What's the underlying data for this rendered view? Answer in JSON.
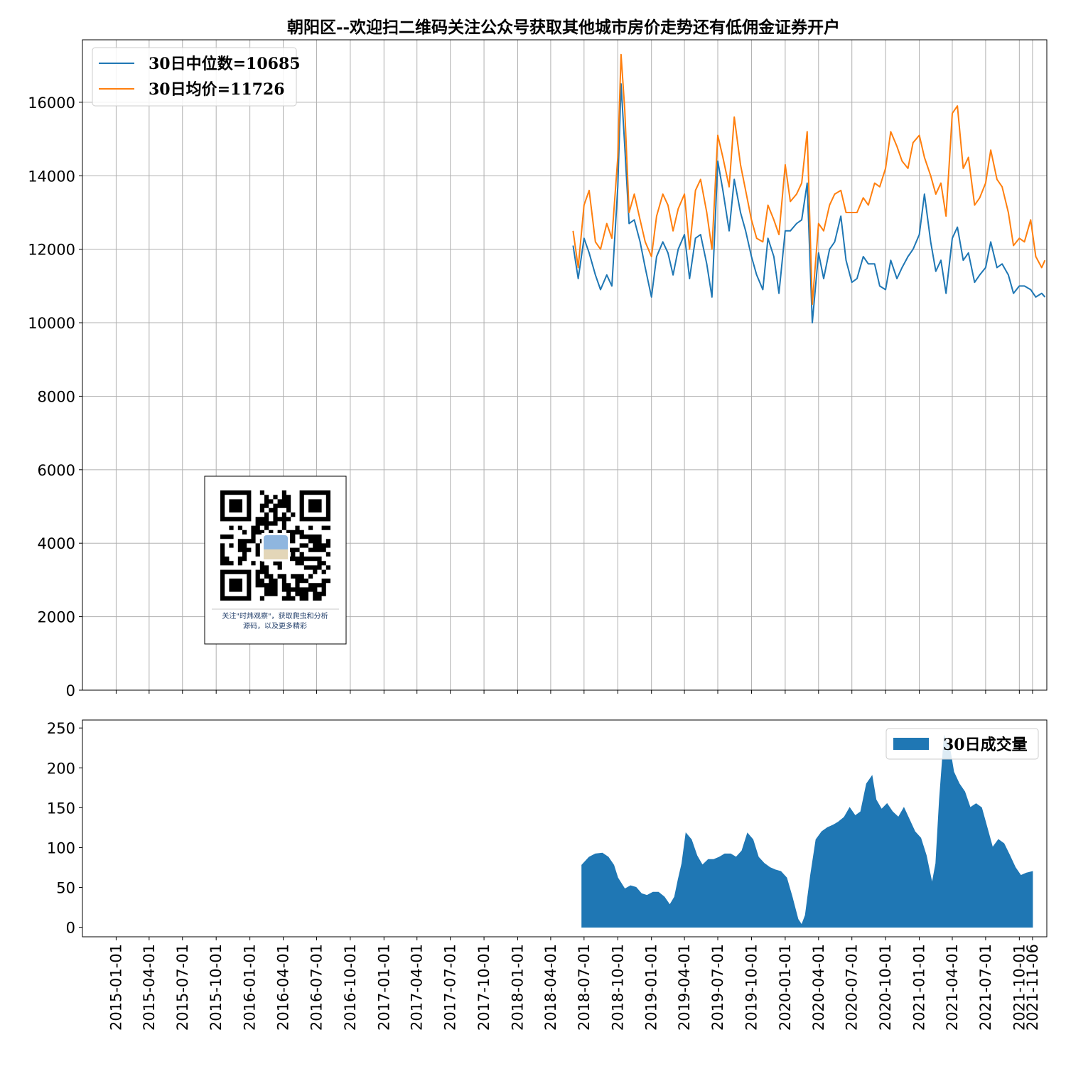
{
  "chart_data": [
    {
      "type": "line",
      "title": "朝阳区--欢迎扫二维码关注公众号获取其他城市房价走势还有低佣金证券开户",
      "xlabel": "",
      "ylabel": "",
      "x_range": [
        "2014-10-01",
        "2021-12-15"
      ],
      "ylim": [
        0,
        17700
      ],
      "y_ticks": [
        0,
        2000,
        4000,
        6000,
        8000,
        10000,
        12000,
        14000,
        16000
      ],
      "grid": true,
      "legend": "top-left",
      "series": [
        {
          "name": "30日中位数=10685",
          "color": "#1f77b4",
          "x": [
            "2018-06-01",
            "2018-06-15",
            "2018-07-01",
            "2018-07-15",
            "2018-08-01",
            "2018-08-15",
            "2018-09-01",
            "2018-09-15",
            "2018-10-01",
            "2018-10-10",
            "2018-10-20",
            "2018-11-01",
            "2018-11-15",
            "2018-12-01",
            "2018-12-15",
            "2019-01-01",
            "2019-01-15",
            "2019-02-01",
            "2019-02-15",
            "2019-03-01",
            "2019-03-15",
            "2019-04-01",
            "2019-04-15",
            "2019-05-01",
            "2019-05-15",
            "2019-06-01",
            "2019-06-15",
            "2019-07-01",
            "2019-07-15",
            "2019-08-01",
            "2019-08-15",
            "2019-09-01",
            "2019-09-15",
            "2019-10-01",
            "2019-10-15",
            "2019-11-01",
            "2019-11-15",
            "2019-12-01",
            "2019-12-15",
            "2020-01-01",
            "2020-01-15",
            "2020-02-01",
            "2020-02-15",
            "2020-03-01",
            "2020-03-15",
            "2020-04-01",
            "2020-04-15",
            "2020-05-01",
            "2020-05-15",
            "2020-06-01",
            "2020-06-15",
            "2020-07-01",
            "2020-07-15",
            "2020-08-01",
            "2020-08-15",
            "2020-09-01",
            "2020-09-15",
            "2020-10-01",
            "2020-10-15",
            "2020-11-01",
            "2020-11-15",
            "2020-12-01",
            "2020-12-15",
            "2021-01-01",
            "2021-01-15",
            "2021-02-01",
            "2021-02-15",
            "2021-03-01",
            "2021-03-15",
            "2021-04-01",
            "2021-04-15",
            "2021-05-01",
            "2021-05-15",
            "2021-06-01",
            "2021-06-15",
            "2021-07-01",
            "2021-07-15",
            "2021-08-01",
            "2021-08-15",
            "2021-09-01",
            "2021-09-15",
            "2021-10-01",
            "2021-10-15",
            "2021-11-01",
            "2021-11-15",
            "2021-12-01",
            "2021-12-10"
          ],
          "values": [
            12100,
            11200,
            12300,
            11900,
            11300,
            10900,
            11300,
            11000,
            13700,
            16500,
            14800,
            12700,
            12800,
            12200,
            11500,
            10700,
            11800,
            12200,
            11900,
            11300,
            12000,
            12400,
            11200,
            12300,
            12400,
            11600,
            10700,
            14400,
            13600,
            12500,
            13900,
            13000,
            12500,
            11800,
            11300,
            10900,
            12300,
            11800,
            10800,
            12500,
            12500,
            12700,
            12800,
            13800,
            10000,
            11900,
            11200,
            12000,
            12200,
            12900,
            11700,
            11100,
            11200,
            11800,
            11600,
            11600,
            11000,
            10900,
            11700,
            11200,
            11500,
            11800,
            12000,
            12400,
            13500,
            12200,
            11400,
            11700,
            10800,
            12300,
            12600,
            11700,
            11900,
            11100,
            11300,
            11500,
            12200,
            11500,
            11600,
            11300,
            10800,
            11000,
            11000,
            10900,
            10700,
            10800,
            10700
          ]
        },
        {
          "name": "30日均价=11726",
          "color": "#ff7f0e",
          "x": [
            "2018-06-01",
            "2018-06-15",
            "2018-07-01",
            "2018-07-15",
            "2018-08-01",
            "2018-08-15",
            "2018-09-01",
            "2018-09-15",
            "2018-10-01",
            "2018-10-10",
            "2018-10-20",
            "2018-11-01",
            "2018-11-15",
            "2018-12-01",
            "2018-12-15",
            "2019-01-01",
            "2019-01-15",
            "2019-02-01",
            "2019-02-15",
            "2019-03-01",
            "2019-03-15",
            "2019-04-01",
            "2019-04-15",
            "2019-05-01",
            "2019-05-15",
            "2019-06-01",
            "2019-06-15",
            "2019-07-01",
            "2019-07-15",
            "2019-08-01",
            "2019-08-15",
            "2019-09-01",
            "2019-09-15",
            "2019-10-01",
            "2019-10-15",
            "2019-11-01",
            "2019-11-15",
            "2019-12-01",
            "2019-12-15",
            "2020-01-01",
            "2020-01-15",
            "2020-02-01",
            "2020-02-15",
            "2020-03-01",
            "2020-03-15",
            "2020-04-01",
            "2020-04-15",
            "2020-05-01",
            "2020-05-15",
            "2020-06-01",
            "2020-06-15",
            "2020-07-01",
            "2020-07-15",
            "2020-08-01",
            "2020-08-15",
            "2020-09-01",
            "2020-09-15",
            "2020-10-01",
            "2020-10-15",
            "2020-11-01",
            "2020-11-15",
            "2020-12-01",
            "2020-12-15",
            "2021-01-01",
            "2021-01-15",
            "2021-02-01",
            "2021-02-15",
            "2021-03-01",
            "2021-03-15",
            "2021-04-01",
            "2021-04-15",
            "2021-05-01",
            "2021-05-15",
            "2021-06-01",
            "2021-06-15",
            "2021-07-01",
            "2021-07-15",
            "2021-08-01",
            "2021-08-15",
            "2021-09-01",
            "2021-09-15",
            "2021-10-01",
            "2021-10-15",
            "2021-11-01",
            "2021-11-15",
            "2021-12-01",
            "2021-12-10"
          ],
          "values": [
            12500,
            11500,
            13200,
            13600,
            12200,
            12000,
            12700,
            12300,
            14500,
            17300,
            15800,
            13000,
            13500,
            12800,
            12200,
            11800,
            12900,
            13500,
            13200,
            12500,
            13100,
            13500,
            12000,
            13600,
            13900,
            13000,
            12000,
            15100,
            14500,
            13700,
            15600,
            14300,
            13600,
            12800,
            12300,
            12200,
            13200,
            12800,
            12400,
            14300,
            13300,
            13500,
            13800,
            15200,
            10500,
            12700,
            12500,
            13200,
            13500,
            13600,
            13000,
            13000,
            13000,
            13400,
            13200,
            13800,
            13700,
            14200,
            15200,
            14800,
            14400,
            14200,
            14900,
            15100,
            14500,
            14000,
            13500,
            13800,
            12900,
            15700,
            15900,
            14200,
            14500,
            13200,
            13400,
            13800,
            14700,
            13900,
            13700,
            13000,
            12100,
            12300,
            12200,
            12800,
            11800,
            11500,
            11700
          ]
        }
      ]
    },
    {
      "type": "area",
      "xlabel": "",
      "ylabel": "",
      "x_range": [
        "2014-10-01",
        "2021-12-15"
      ],
      "ylim": [
        -12,
        260
      ],
      "y_ticks": [
        0,
        50,
        100,
        150,
        200,
        250
      ],
      "x_ticks": [
        "2015-01-01",
        "2015-04-01",
        "2015-07-01",
        "2015-10-01",
        "2016-01-01",
        "2016-04-01",
        "2016-07-01",
        "2016-10-01",
        "2017-01-01",
        "2017-04-01",
        "2017-07-01",
        "2017-10-01",
        "2018-01-01",
        "2018-04-01",
        "2018-07-01",
        "2018-10-01",
        "2019-01-01",
        "2019-04-01",
        "2019-07-01",
        "2019-10-01",
        "2020-01-01",
        "2020-04-01",
        "2020-07-01",
        "2020-10-01",
        "2021-01-01",
        "2021-04-01",
        "2021-07-01",
        "2021-10-01",
        "2021-11-06"
      ],
      "grid": false,
      "legend": "top-right",
      "series": [
        {
          "name": "30日成交量",
          "color": "#1f77b4",
          "x": [
            "2018-06-25",
            "2018-07-15",
            "2018-08-01",
            "2018-08-20",
            "2018-09-05",
            "2018-09-20",
            "2018-10-01",
            "2018-10-20",
            "2018-11-05",
            "2018-11-20",
            "2018-12-05",
            "2018-12-20",
            "2019-01-05",
            "2019-01-20",
            "2019-02-05",
            "2019-02-20",
            "2019-03-05",
            "2019-03-15",
            "2019-03-25",
            "2019-04-05",
            "2019-04-20",
            "2019-05-05",
            "2019-05-20",
            "2019-06-05",
            "2019-06-20",
            "2019-07-05",
            "2019-07-20",
            "2019-08-05",
            "2019-08-20",
            "2019-09-05",
            "2019-09-20",
            "2019-10-05",
            "2019-10-20",
            "2019-11-05",
            "2019-11-20",
            "2019-12-05",
            "2019-12-20",
            "2020-01-05",
            "2020-01-20",
            "2020-02-05",
            "2020-02-15",
            "2020-02-25",
            "2020-03-10",
            "2020-03-25",
            "2020-04-10",
            "2020-04-25",
            "2020-05-10",
            "2020-05-25",
            "2020-06-10",
            "2020-06-25",
            "2020-07-10",
            "2020-07-25",
            "2020-08-10",
            "2020-08-25",
            "2020-09-05",
            "2020-09-20",
            "2020-10-05",
            "2020-10-20",
            "2020-11-05",
            "2020-11-20",
            "2020-12-05",
            "2020-12-20",
            "2021-01-05",
            "2021-01-20",
            "2021-02-05",
            "2021-02-15",
            "2021-02-25",
            "2021-03-10",
            "2021-03-25",
            "2021-04-05",
            "2021-04-20",
            "2021-05-05",
            "2021-05-20",
            "2021-06-05",
            "2021-06-20",
            "2021-07-05",
            "2021-07-20",
            "2021-08-05",
            "2021-08-20",
            "2021-09-05",
            "2021-09-20",
            "2021-10-05",
            "2021-10-20",
            "2021-11-06"
          ],
          "values": [
            78,
            88,
            92,
            93,
            88,
            78,
            62,
            48,
            52,
            50,
            42,
            40,
            44,
            44,
            38,
            28,
            38,
            60,
            80,
            118,
            110,
            90,
            78,
            85,
            85,
            88,
            92,
            92,
            88,
            96,
            118,
            110,
            88,
            80,
            75,
            72,
            70,
            62,
            38,
            10,
            3,
            15,
            65,
            110,
            120,
            125,
            128,
            132,
            138,
            150,
            140,
            145,
            180,
            190,
            160,
            148,
            155,
            145,
            138,
            150,
            135,
            120,
            112,
            90,
            55,
            80,
            160,
            240,
            225,
            195,
            180,
            170,
            150,
            155,
            150,
            125,
            100,
            110,
            105,
            90,
            75,
            65,
            68,
            70
          ]
        }
      ]
    }
  ],
  "qr_card": {
    "caption_line1": "关注\"时炜观察\"，获取爬虫和分析",
    "caption_line2": "源码，以及更多精彩"
  }
}
